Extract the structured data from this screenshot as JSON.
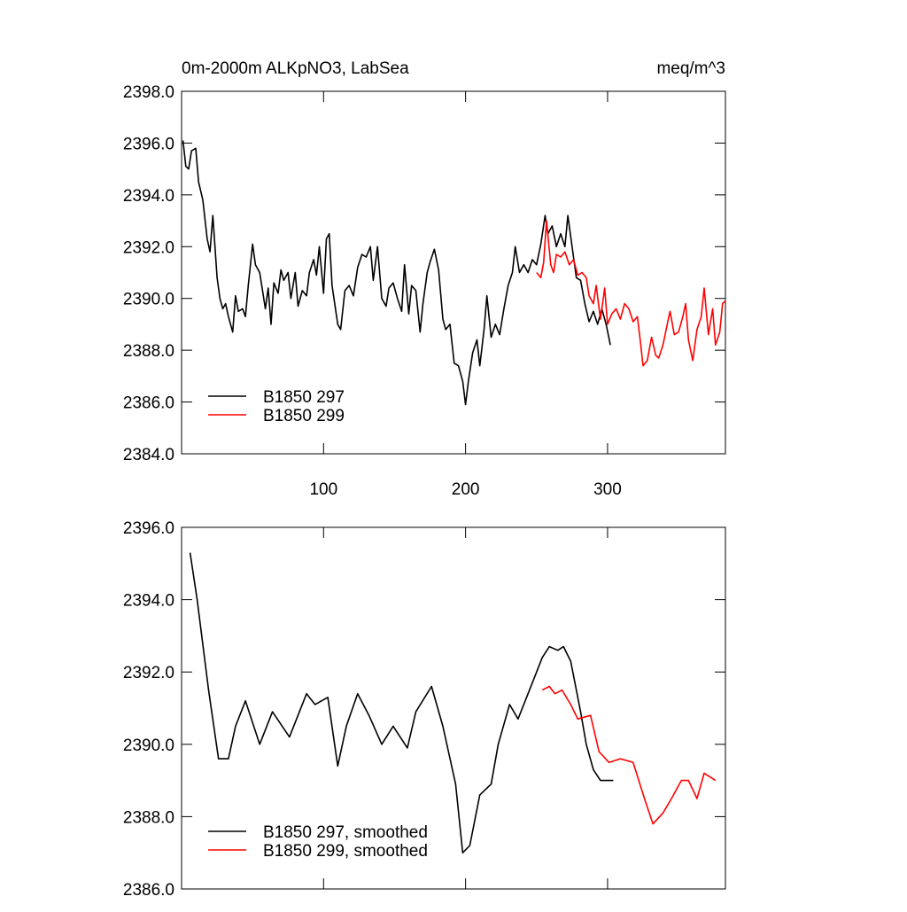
{
  "chart_data": [
    {
      "type": "line",
      "title": "0m-2000m ALKpNO3, LabSea",
      "units": "meq/m^3",
      "xlim": [
        0,
        383
      ],
      "xticks": [
        100,
        200,
        300
      ],
      "ylim": [
        2384,
        2398
      ],
      "yticks": [
        {
          "value": 2384,
          "label": "2384.0"
        },
        {
          "value": 2386,
          "label": "2386.0"
        },
        {
          "value": 2388,
          "label": "2388.0"
        },
        {
          "value": 2390,
          "label": "2390.0"
        },
        {
          "value": 2392,
          "label": "2392.0"
        },
        {
          "value": 2394,
          "label": "2394.0"
        },
        {
          "value": 2396,
          "label": "2396.0"
        },
        {
          "value": 2398,
          "label": "2398.0"
        }
      ],
      "legend": "lower left",
      "series": [
        {
          "name": "B1850 297",
          "color": "#000000",
          "x": [
            1,
            3,
            5,
            7,
            10,
            12,
            15,
            18,
            20,
            22,
            25,
            27,
            29,
            31,
            33,
            36,
            38,
            40,
            43,
            45,
            47,
            50,
            52,
            55,
            57,
            59,
            61,
            63,
            65,
            68,
            70,
            72,
            75,
            77,
            80,
            82,
            85,
            88,
            90,
            93,
            95,
            97,
            100,
            102,
            104,
            106,
            110,
            112,
            115,
            118,
            121,
            124,
            127,
            130,
            133,
            135,
            138,
            141,
            144,
            146,
            149,
            152,
            155,
            157,
            160,
            162,
            165,
            168,
            170,
            173,
            175,
            178,
            181,
            184,
            186,
            189,
            192,
            195,
            198,
            200,
            202,
            205,
            208,
            210,
            213,
            215,
            218,
            221,
            224,
            227,
            230,
            233,
            235,
            238,
            241,
            244,
            247,
            250,
            253,
            256,
            258,
            261,
            264,
            267,
            270,
            272,
            275,
            278,
            281,
            284,
            287,
            290,
            293,
            296,
            299,
            302
          ],
          "values": [
            2396.1,
            2395.1,
            2395.0,
            2395.7,
            2395.8,
            2394.5,
            2393.8,
            2392.3,
            2391.8,
            2393.2,
            2390.8,
            2390.0,
            2389.6,
            2389.8,
            2389.3,
            2388.7,
            2390.1,
            2389.5,
            2389.6,
            2389.3,
            2390.5,
            2392.1,
            2391.3,
            2391.0,
            2390.3,
            2389.6,
            2390.4,
            2389.0,
            2390.6,
            2390.2,
            2391.1,
            2390.7,
            2391.0,
            2390.0,
            2391.0,
            2389.7,
            2390.3,
            2390.1,
            2391.0,
            2391.5,
            2390.9,
            2392.0,
            2390.2,
            2392.3,
            2392.5,
            2390.5,
            2389.0,
            2388.8,
            2390.3,
            2390.5,
            2390.1,
            2391.2,
            2391.7,
            2391.6,
            2392.0,
            2390.7,
            2392.0,
            2390.0,
            2389.7,
            2390.4,
            2390.6,
            2390.0,
            2389.5,
            2391.3,
            2389.4,
            2390.5,
            2390.3,
            2388.7,
            2389.8,
            2391.0,
            2391.4,
            2391.9,
            2391.1,
            2389.2,
            2388.8,
            2389.0,
            2387.5,
            2387.4,
            2386.8,
            2385.9,
            2386.8,
            2387.9,
            2388.4,
            2387.4,
            2388.8,
            2390.1,
            2388.5,
            2389.0,
            2388.6,
            2389.6,
            2390.5,
            2391.0,
            2392.0,
            2391.0,
            2391.3,
            2391.0,
            2391.5,
            2391.3,
            2392.1,
            2393.2,
            2392.5,
            2392.8,
            2392.0,
            2392.5,
            2392.0,
            2393.2,
            2392.0,
            2390.8,
            2390.7,
            2389.8,
            2389.1,
            2389.5,
            2389.0,
            2389.6,
            2389.0,
            2388.2
          ]
        },
        {
          "name": "B1850 299",
          "color": "#ff0000",
          "x": [
            250,
            253,
            255,
            257,
            260,
            262,
            264,
            267,
            270,
            273,
            276,
            279,
            282,
            285,
            287,
            290,
            292,
            295,
            298,
            300,
            303,
            306,
            309,
            312,
            315,
            318,
            321,
            323,
            325,
            328,
            331,
            334,
            336,
            339,
            342,
            344,
            347,
            350,
            353,
            355,
            357,
            360,
            363,
            366,
            368,
            371,
            374,
            376,
            379,
            381,
            383
          ],
          "values": [
            2391.0,
            2390.8,
            2391.4,
            2393.0,
            2391.3,
            2391.0,
            2391.7,
            2391.6,
            2391.8,
            2391.3,
            2391.5,
            2390.9,
            2391.0,
            2390.8,
            2390.1,
            2389.8,
            2390.5,
            2389.2,
            2390.4,
            2389.0,
            2389.4,
            2389.6,
            2389.2,
            2389.8,
            2389.6,
            2389.1,
            2389.3,
            2388.4,
            2387.4,
            2387.6,
            2388.5,
            2387.8,
            2387.7,
            2388.2,
            2389.0,
            2389.5,
            2388.6,
            2388.7,
            2389.3,
            2389.8,
            2388.4,
            2387.6,
            2388.8,
            2389.3,
            2390.4,
            2388.6,
            2389.6,
            2388.2,
            2388.7,
            2389.8,
            2389.9
          ]
        }
      ]
    },
    {
      "type": "line",
      "xlim": [
        0,
        383
      ],
      "xticks": [
        100,
        200,
        300
      ],
      "ylim": [
        2386,
        2396
      ],
      "yticks": [
        {
          "value": 2386,
          "label": "2386.0"
        },
        {
          "value": 2388,
          "label": "2388.0"
        },
        {
          "value": 2390,
          "label": "2390.0"
        },
        {
          "value": 2392,
          "label": "2392.0"
        },
        {
          "value": 2394,
          "label": "2394.0"
        },
        {
          "value": 2396,
          "label": "2396.0"
        }
      ],
      "legend": "lower left",
      "series": [
        {
          "name": "B1850 297, smoothed",
          "color": "#000000",
          "x": [
            6,
            11,
            19,
            26,
            33,
            38,
            45,
            55,
            64,
            76,
            88,
            94,
            103,
            110,
            116,
            124,
            132,
            141,
            149,
            159,
            165,
            176,
            184,
            193,
            198,
            203,
            210,
            218,
            223,
            231,
            237,
            245,
            254,
            259,
            265,
            269,
            274,
            281,
            285,
            290,
            295,
            299,
            304
          ],
          "values": [
            2395.3,
            2394.0,
            2391.5,
            2389.6,
            2389.6,
            2390.5,
            2391.2,
            2390.0,
            2390.9,
            2390.2,
            2391.4,
            2391.1,
            2391.3,
            2389.4,
            2390.5,
            2391.4,
            2390.8,
            2390.0,
            2390.5,
            2389.9,
            2390.9,
            2391.6,
            2390.5,
            2388.9,
            2387.0,
            2387.2,
            2388.6,
            2388.9,
            2390.0,
            2391.1,
            2390.7,
            2391.5,
            2392.4,
            2392.7,
            2392.6,
            2392.7,
            2392.3,
            2390.9,
            2390.0,
            2389.3,
            2389.0,
            2389.0,
            2389.0
          ]
        },
        {
          "name": "B1850 299, smoothed",
          "color": "#ff0000",
          "x": [
            254,
            259,
            263,
            268,
            274,
            279,
            288,
            294,
            301,
            309,
            318,
            326,
            332,
            339,
            345,
            352,
            357,
            363,
            368,
            376
          ],
          "values": [
            2391.5,
            2391.6,
            2391.4,
            2391.5,
            2391.1,
            2390.7,
            2390.8,
            2389.8,
            2389.5,
            2389.6,
            2389.5,
            2388.5,
            2387.8,
            2388.1,
            2388.5,
            2389.0,
            2389.0,
            2388.5,
            2389.2,
            2389.0
          ]
        }
      ]
    }
  ]
}
